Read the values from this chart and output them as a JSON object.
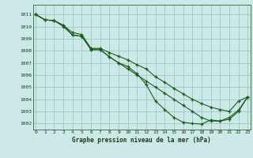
{
  "title": "Graphe pression niveau de la mer (hPa)",
  "bg_color": "#cce8e8",
  "grid_color": "#99ccbb",
  "line_color": "#1a5c1a",
  "x_ticks": [
    0,
    1,
    2,
    3,
    4,
    5,
    6,
    7,
    8,
    9,
    10,
    11,
    12,
    13,
    14,
    15,
    16,
    17,
    18,
    19,
    20,
    21,
    22,
    23
  ],
  "xlim": [
    -0.3,
    23.3
  ],
  "ylim": [
    1001.5,
    1011.8
  ],
  "y_ticks": [
    1002,
    1003,
    1004,
    1005,
    1006,
    1007,
    1008,
    1009,
    1010,
    1011
  ],
  "series1": [
    1011.0,
    1010.55,
    1010.5,
    1010.1,
    1009.3,
    1009.2,
    1008.1,
    1008.1,
    1007.5,
    1007.0,
    1006.7,
    1006.1,
    1005.2,
    1003.85,
    1003.15,
    1002.5,
    1002.1,
    1002.0,
    1001.95,
    1002.3,
    1002.2,
    1002.5,
    1003.1,
    1004.2
  ],
  "series2": [
    1011.0,
    1010.55,
    1010.5,
    1010.1,
    1009.5,
    1009.35,
    1008.2,
    1008.2,
    1007.85,
    1007.55,
    1007.25,
    1006.85,
    1006.5,
    1005.85,
    1005.4,
    1004.9,
    1004.45,
    1004.0,
    1003.65,
    1003.35,
    1003.15,
    1003.0,
    1003.85,
    1004.2
  ],
  "series3": [
    1011.0,
    1010.55,
    1010.5,
    1010.0,
    1009.3,
    1009.2,
    1008.1,
    1008.1,
    1007.5,
    1007.0,
    1006.5,
    1006.0,
    1005.5,
    1005.0,
    1004.5,
    1004.0,
    1003.5,
    1003.0,
    1002.5,
    1002.2,
    1002.2,
    1002.35,
    1003.0,
    1004.2
  ]
}
